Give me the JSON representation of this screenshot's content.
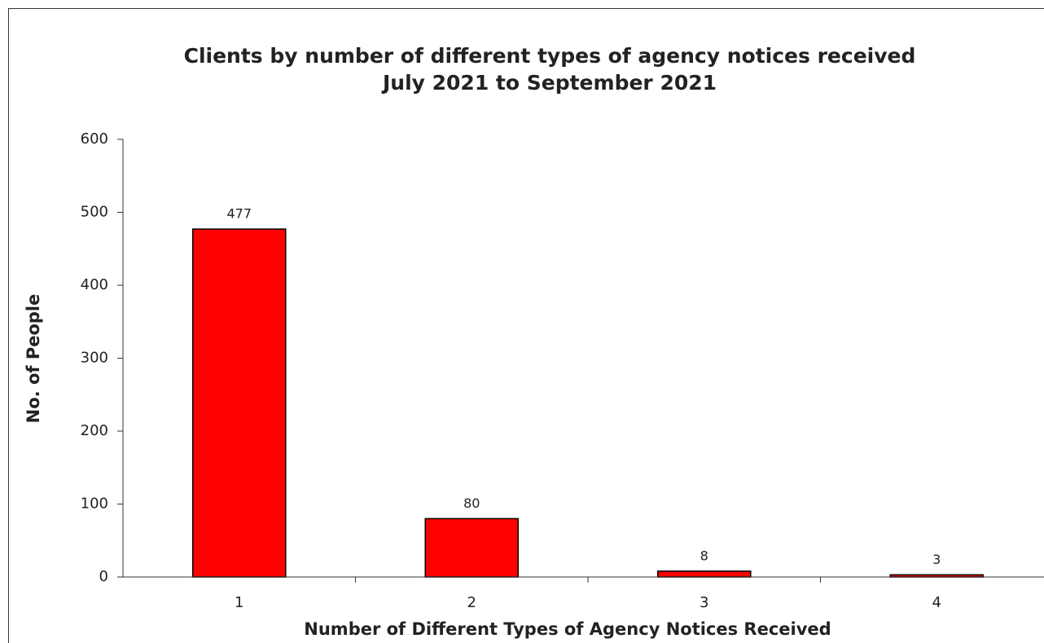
{
  "chart_data": {
    "type": "bar",
    "title": "Clients by number of different types of agency notices received",
    "subtitle": "July 2021 to September 2021",
    "x_label": "Number of Different Types of Agency Notices Received",
    "y_label": "No. of People",
    "categories": [
      "1",
      "2",
      "3",
      "4"
    ],
    "values": [
      477,
      80,
      8,
      3
    ],
    "color": "#ff0000",
    "ylim": [
      0,
      600
    ],
    "yticks": [
      0,
      100,
      200,
      300,
      400,
      500,
      600
    ],
    "grid": false
  }
}
